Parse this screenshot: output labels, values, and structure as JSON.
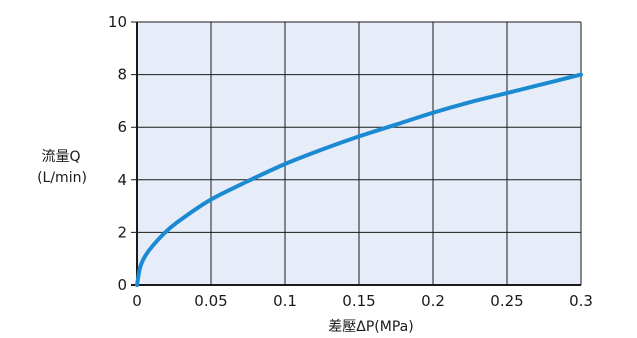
{
  "chart_data": {
    "type": "line",
    "xlabel": "差壓ΔP(MPa)",
    "ylabel_line1": "流量Q",
    "ylabel_line2": "(L/min)",
    "xlim": [
      0,
      0.3
    ],
    "ylim": [
      0,
      10
    ],
    "x_ticks": [
      0,
      0.05,
      0.1,
      0.15,
      0.2,
      0.25,
      0.3
    ],
    "x_tick_labels": [
      "0",
      "0.05",
      "0.1",
      "0.15",
      "0.2",
      "0.25",
      "0.3"
    ],
    "y_ticks": [
      0,
      2,
      4,
      6,
      8,
      10
    ],
    "y_tick_labels": [
      "0",
      "2",
      "4",
      "6",
      "8",
      "10"
    ],
    "grid": true,
    "series": [
      {
        "x": [
          0,
          0.002,
          0.005,
          0.01,
          0.02,
          0.03,
          0.05,
          0.075,
          0.1,
          0.125,
          0.15,
          0.175,
          0.2,
          0.225,
          0.25,
          0.275,
          0.3
        ],
        "y": [
          0,
          0.65,
          1.05,
          1.45,
          2.05,
          2.5,
          3.25,
          3.95,
          4.6,
          5.15,
          5.65,
          6.1,
          6.55,
          6.95,
          7.3,
          7.65,
          8.0
        ]
      }
    ],
    "colors": {
      "plot_background": "#e6edf8",
      "grid": "#1a1a1a",
      "line": "#1b8ad3"
    }
  }
}
